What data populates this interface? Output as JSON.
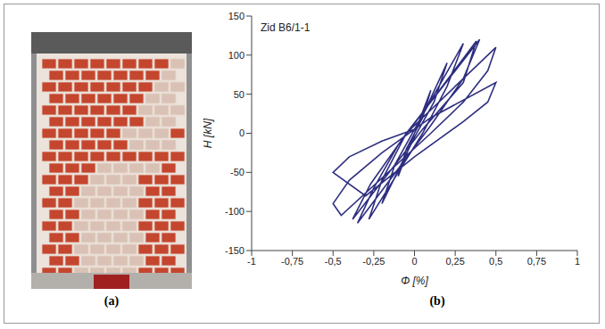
{
  "photo": {
    "label": "(a)"
  },
  "chart_data": {
    "type": "line",
    "panel_label": "(b)",
    "annotation": "Zid B6/1-1",
    "x_label": "Φ [%]",
    "y_label": "H [kN]",
    "color": "#2e2e80",
    "marker": "none",
    "grid": false,
    "xlim": [
      -1,
      1
    ],
    "xticks": [
      -1,
      {
        "value": -0.75,
        "label": "-0,75"
      },
      {
        "value": -0.5,
        "label": "-0,5"
      },
      {
        "value": -0.25,
        "label": "-0,25"
      },
      0,
      {
        "value": 0.25,
        "label": "0,25"
      },
      {
        "value": 0.5,
        "label": "0,5"
      },
      {
        "value": 0.75,
        "label": "0,75"
      },
      1
    ],
    "ylim": [
      -150,
      150
    ],
    "yticks": [
      -150,
      -100,
      -50,
      0,
      50,
      100,
      150
    ],
    "x": [
      0,
      0.1,
      0.05,
      0,
      -0.1,
      -0.05,
      0,
      0.2,
      0.12,
      0,
      -0.2,
      -0.12,
      0,
      0.3,
      0.2,
      0.05,
      -0.28,
      -0.2,
      -0.05,
      0.4,
      0.3,
      0.1,
      -0.35,
      -0.25,
      -0.1,
      0.38,
      0.3,
      0.05,
      -0.38,
      -0.27,
      -0.05,
      0.5,
      0.45,
      0.3,
      0.1,
      -0.45,
      -0.5,
      -0.4,
      -0.2,
      0.1,
      0.5,
      0.45,
      0.3,
      0,
      -0.3,
      -0.5,
      -0.4,
      -0.2,
      0
    ],
    "values": [
      0,
      55,
      20,
      0,
      -55,
      -20,
      0,
      90,
      40,
      -5,
      -90,
      -40,
      5,
      115,
      60,
      0,
      -110,
      -60,
      0,
      120,
      70,
      10,
      -115,
      -70,
      -15,
      118,
      65,
      5,
      -110,
      -65,
      0,
      110,
      80,
      40,
      0,
      -105,
      -90,
      -60,
      -25,
      20,
      65,
      40,
      15,
      -30,
      -80,
      -50,
      -30,
      -10,
      5
    ]
  }
}
